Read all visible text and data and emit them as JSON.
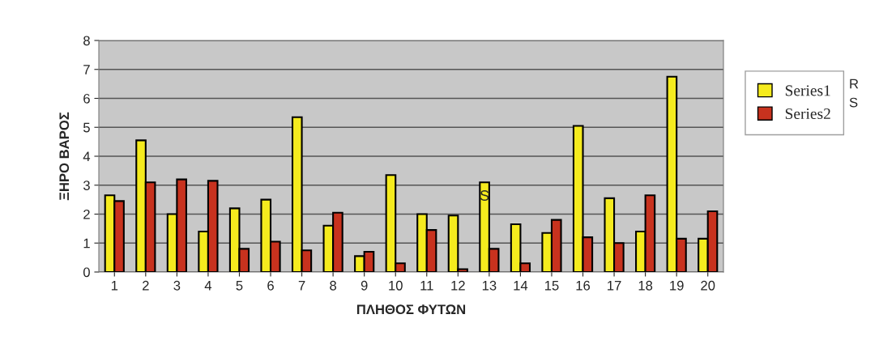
{
  "chart_data": {
    "type": "bar",
    "xlabel": "ΠΛΗΘΟΣ ΦΥΤΩΝ",
    "ylabel": "ΞΗΡΟ ΒΑΡΟΣ",
    "categories": [
      "1",
      "2",
      "3",
      "4",
      "5",
      "6",
      "7",
      "8",
      "9",
      "10",
      "11",
      "12",
      "13",
      "14",
      "15",
      "16",
      "17",
      "18",
      "19",
      "20"
    ],
    "series": [
      {
        "name": "Series1",
        "color": "#f5eb1e",
        "values": [
          2.65,
          4.55,
          2.0,
          1.4,
          2.2,
          2.5,
          5.35,
          1.6,
          0.55,
          3.35,
          2.0,
          1.95,
          3.1,
          1.65,
          1.35,
          5.05,
          2.55,
          1.4,
          6.75,
          1.15
        ]
      },
      {
        "name": "Series2",
        "color": "#c8321e",
        "values": [
          2.45,
          3.1,
          3.2,
          3.15,
          0.8,
          1.05,
          0.75,
          2.05,
          0.7,
          0.3,
          1.45,
          0.1,
          0.8,
          0.3,
          1.8,
          1.2,
          1.0,
          2.65,
          1.15,
          2.1
        ]
      }
    ],
    "ylim": [
      0,
      8
    ],
    "yticks": [
      0,
      1,
      2,
      3,
      4,
      5,
      6,
      7,
      8
    ],
    "grid": "y",
    "legend": "right",
    "annotations": [
      {
        "text": "S",
        "x": "13",
        "y": 2.6
      },
      "R",
      "S"
    ]
  }
}
